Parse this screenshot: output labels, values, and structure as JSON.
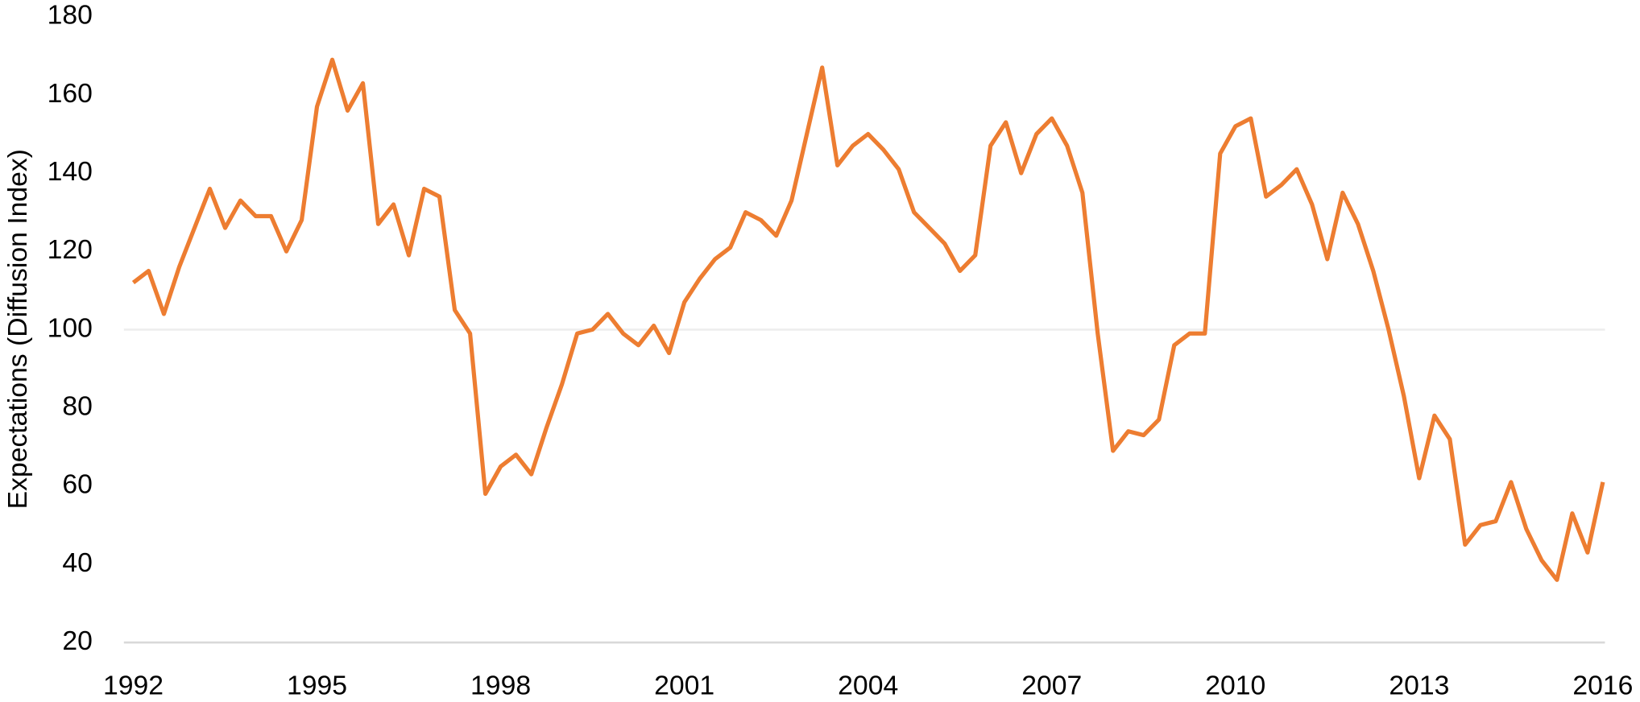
{
  "chart_data": {
    "type": "line",
    "y_label": "Expectations (Diffusion Index)",
    "x": [
      1992,
      1992.25,
      1992.5,
      1992.75,
      1993,
      1993.25,
      1993.5,
      1993.75,
      1994,
      1994.25,
      1994.5,
      1994.75,
      1995,
      1995.25,
      1995.5,
      1995.75,
      1996,
      1996.25,
      1996.5,
      1996.75,
      1997,
      1997.25,
      1997.5,
      1997.75,
      1998,
      1998.25,
      1998.5,
      1998.75,
      1999,
      1999.25,
      1999.5,
      1999.75,
      2000,
      2000.25,
      2000.5,
      2000.75,
      2001,
      2001.25,
      2001.5,
      2001.75,
      2002,
      2002.25,
      2002.5,
      2002.75,
      2003,
      2003.25,
      2003.5,
      2003.75,
      2004,
      2004.25,
      2004.5,
      2004.75,
      2005,
      2005.25,
      2005.5,
      2005.75,
      2006,
      2006.25,
      2006.5,
      2006.75,
      2007,
      2007.25,
      2007.5,
      2007.75,
      2008,
      2008.25,
      2008.5,
      2008.75,
      2009,
      2009.25,
      2009.5,
      2009.75,
      2010,
      2010.25,
      2010.5,
      2010.75,
      2011,
      2011.25,
      2011.5,
      2011.75,
      2012,
      2012.25,
      2012.5,
      2012.75,
      2013,
      2013.25,
      2013.5,
      2013.75,
      2014,
      2014.25,
      2014.5,
      2014.75,
      2015,
      2015.25,
      2015.5,
      2015.75,
      2016
    ],
    "series": [
      {
        "name": "Expectations",
        "color": "#ed7d31",
        "values": [
          112,
          115,
          104,
          116,
          126,
          136,
          126,
          133,
          129,
          129,
          120,
          128,
          157,
          169,
          156,
          163,
          127,
          132,
          119,
          136,
          134,
          105,
          99,
          58,
          65,
          68,
          63,
          75,
          86,
          99,
          100,
          104,
          99,
          96,
          101,
          94,
          107,
          113,
          118,
          121,
          130,
          128,
          124,
          133,
          150,
          167,
          142,
          147,
          150,
          146,
          141,
          130,
          126,
          122,
          115,
          119,
          147,
          153,
          140,
          150,
          154,
          147,
          135,
          99,
          69,
          74,
          73,
          77,
          96,
          99,
          99,
          145,
          152,
          154,
          134,
          137,
          141,
          132,
          118,
          135,
          127,
          115,
          100,
          83,
          62,
          78,
          72,
          45,
          50,
          51,
          61,
          49,
          41,
          36,
          53,
          43,
          61
        ]
      }
    ],
    "xlim": [
      1992,
      2016
    ],
    "xticks": [
      1992,
      1995,
      1998,
      2001,
      2004,
      2007,
      2010,
      2013,
      2016
    ],
    "ylim": [
      20,
      180
    ],
    "yticks": [
      20,
      40,
      60,
      80,
      100,
      120,
      140,
      160,
      180
    ],
    "reference_line": 100
  }
}
